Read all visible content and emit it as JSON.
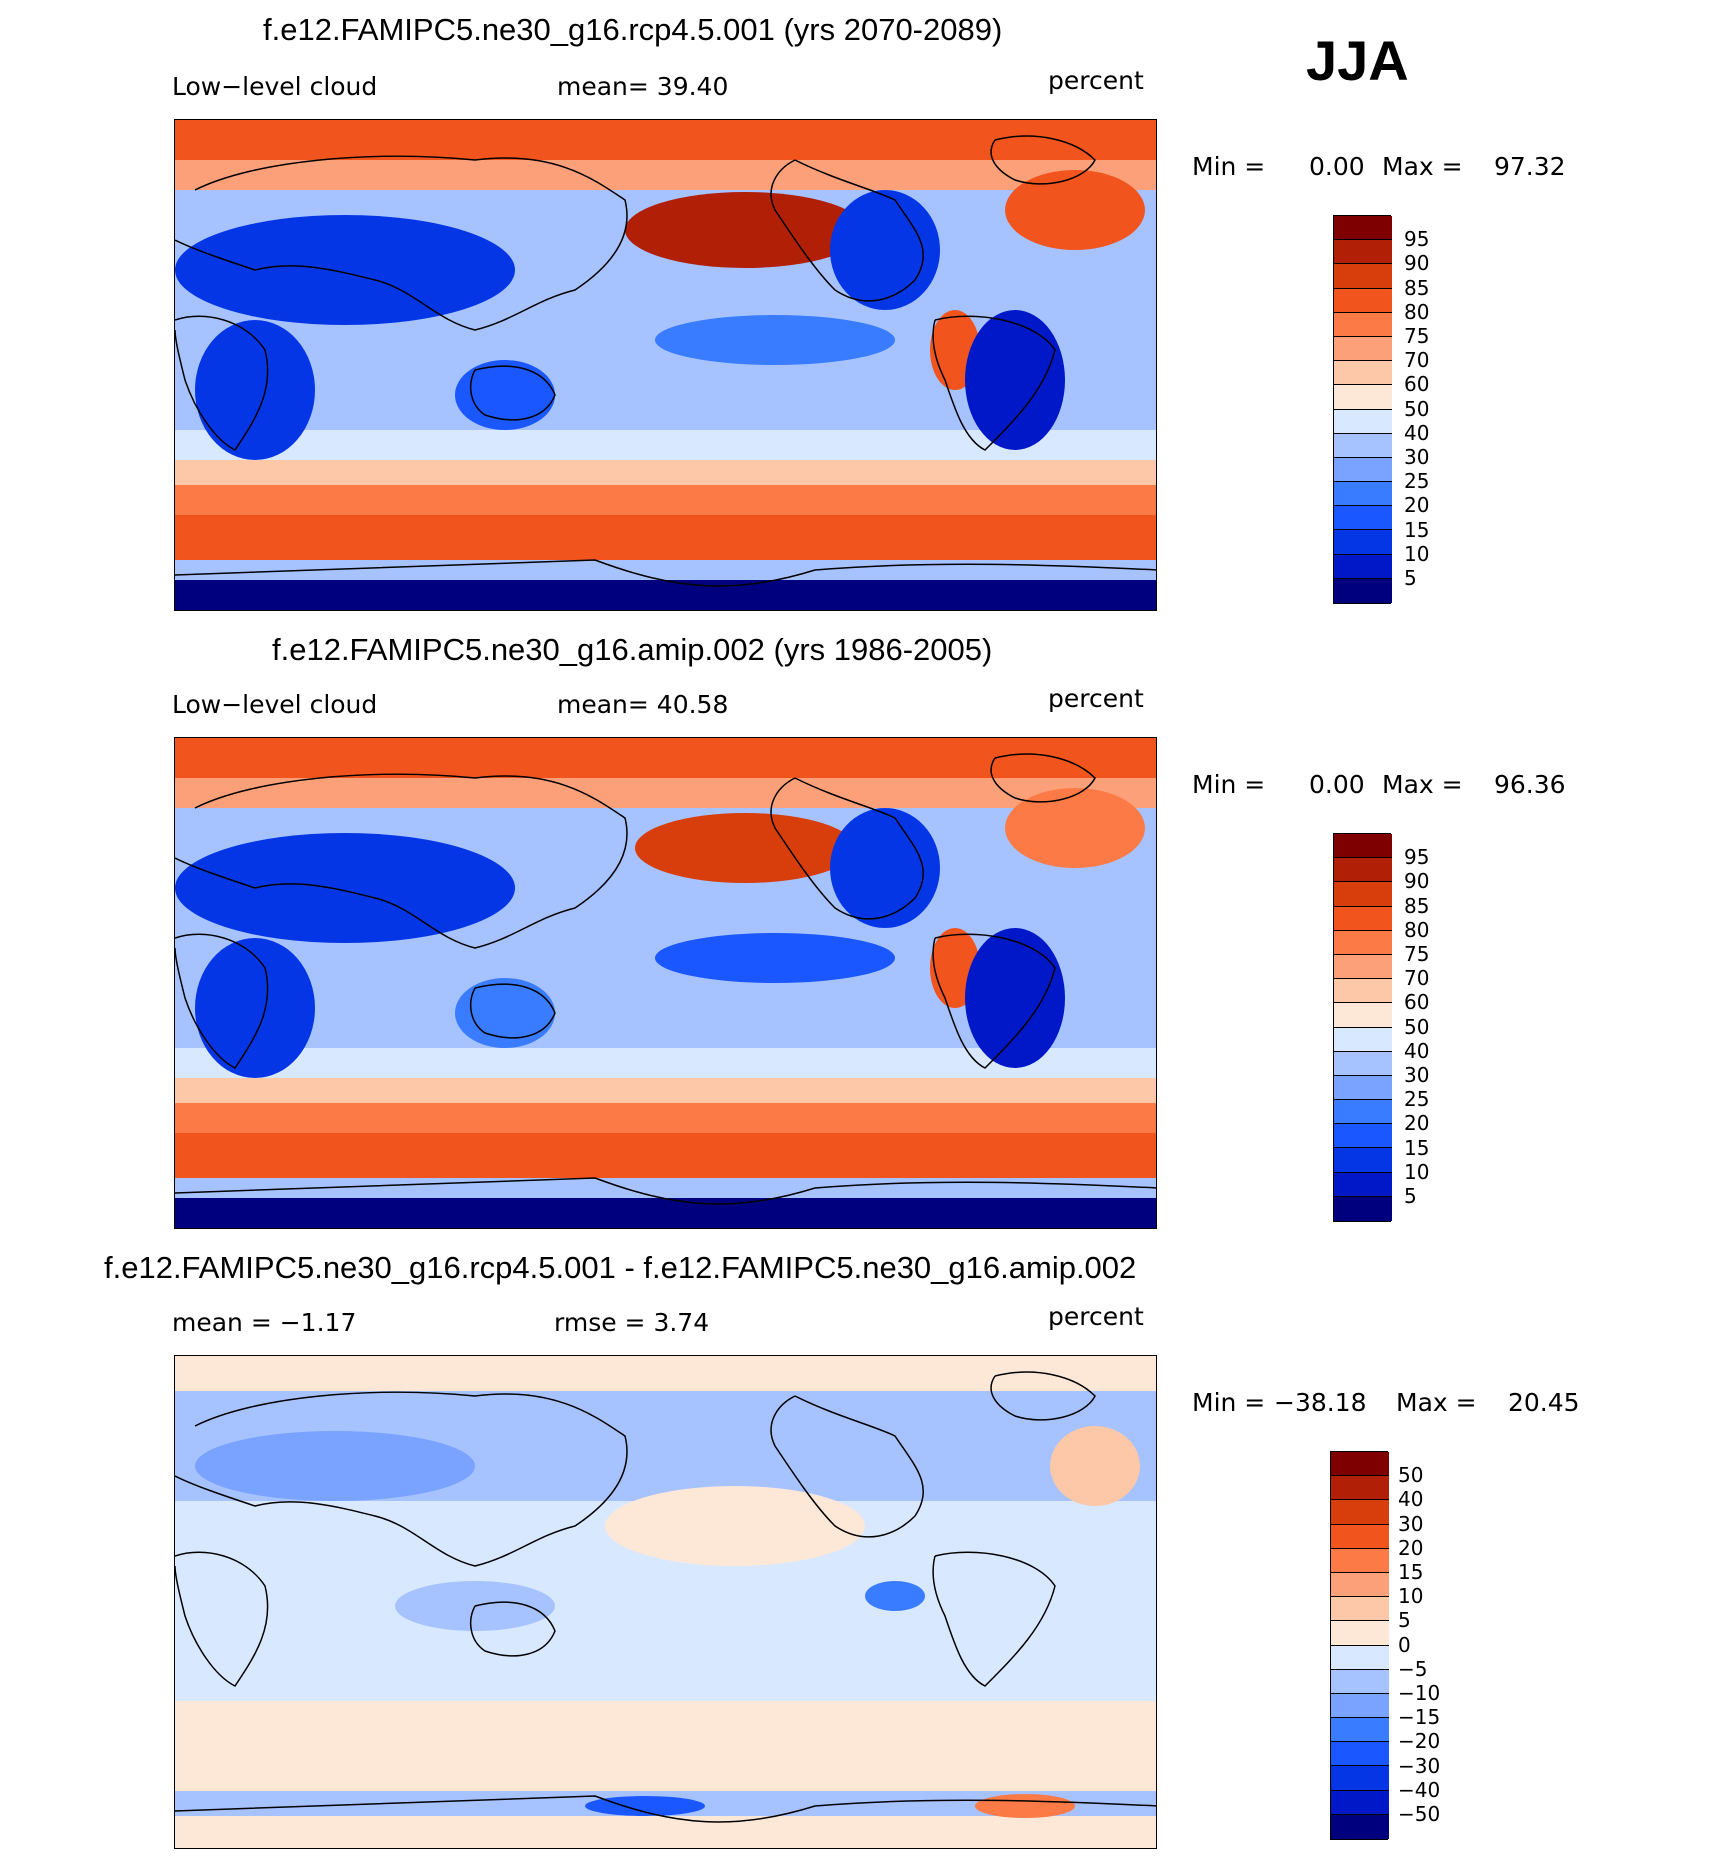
{
  "season": "JJA",
  "colors": {
    "abs_scale": [
      "#00007f",
      "#0018c8",
      "#0536e6",
      "#1b57ff",
      "#3a7cff",
      "#7aa3ff",
      "#a6c3ff",
      "#d8e8ff",
      "#fde8d8",
      "#fdc8a8",
      "#fca07a",
      "#fc7a46",
      "#f2541e",
      "#d73e0c",
      "#b11f06",
      "#7f0000"
    ],
    "diff_scale": [
      "#00007f",
      "#0018c8",
      "#0536e6",
      "#1b57ff",
      "#3a7cff",
      "#7aa3ff",
      "#a6c3ff",
      "#d8e8ff",
      "#fde8d8",
      "#fdc8a8",
      "#fca07a",
      "#fc7a46",
      "#f2541e",
      "#d73e0c",
      "#b11f06",
      "#7f0000"
    ],
    "land_line": "#000000"
  },
  "panels": [
    {
      "title": "f.e12.FAMIPC5.ne30_g16.rcp4.5.001 (yrs 2070-2089)",
      "left_label": "Low−level cloud",
      "center_label": "mean=   39.40",
      "right_label": "percent",
      "min_label": "Min =",
      "min_value": "0.00",
      "max_label": "Max =",
      "max_value": "97.32",
      "kind": "abs",
      "colorbar_labels": [
        "95",
        "90",
        "85",
        "80",
        "75",
        "70",
        "60",
        "50",
        "40",
        "30",
        "25",
        "20",
        "15",
        "10",
        "5"
      ]
    },
    {
      "title": "f.e12.FAMIPC5.ne30_g16.amip.002 (yrs 1986-2005)",
      "left_label": "Low−level cloud",
      "center_label": "mean=   40.58",
      "right_label": "percent",
      "min_label": "Min =",
      "min_value": "0.00",
      "max_label": "Max =",
      "max_value": "96.36",
      "kind": "abs",
      "colorbar_labels": [
        "95",
        "90",
        "85",
        "80",
        "75",
        "70",
        "60",
        "50",
        "40",
        "30",
        "25",
        "20",
        "15",
        "10",
        "5"
      ]
    },
    {
      "title": "f.e12.FAMIPC5.ne30_g16.rcp4.5.001 - f.e12.FAMIPC5.ne30_g16.amip.002",
      "left_label": "mean =   −1.17",
      "center_label": "rmse =    3.74",
      "right_label": "percent",
      "min_label": "Min =",
      "min_value": "−38.18",
      "max_label": "Max =",
      "max_value": "20.45",
      "kind": "diff",
      "colorbar_labels": [
        "50",
        "40",
        "30",
        "20",
        "15",
        "10",
        "5",
        "0",
        "−5",
        "−10",
        "−15",
        "−20",
        "−30",
        "−40",
        "−50"
      ]
    }
  ]
}
